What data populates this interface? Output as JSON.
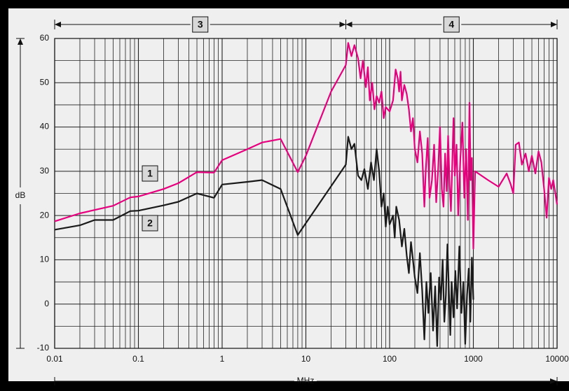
{
  "chart_data": {
    "type": "line",
    "title": "",
    "xlabel": "MHz",
    "ylabel": "dB",
    "xscale": "log",
    "xlim": [
      0.01,
      10000
    ],
    "ylim": [
      -10,
      60
    ],
    "grid": true,
    "x_tick_labels": [
      "0.01",
      "0.1",
      "1",
      "10",
      "100",
      "1000",
      "10000"
    ],
    "y_tick_labels": [
      "-10",
      "0",
      "10",
      "20",
      "30",
      "40",
      "50",
      "60"
    ],
    "y_ticks": [
      -10,
      0,
      10,
      20,
      30,
      40,
      50,
      60
    ],
    "x_ticks": [
      0.01,
      0.1,
      1,
      10,
      100,
      1000,
      10000
    ],
    "range_labels": [
      {
        "label": "3",
        "from": 0.01,
        "to": 30
      },
      {
        "label": "4",
        "from": 30,
        "to": 10000
      }
    ],
    "series": [
      {
        "name": "1",
        "color": "#e6007e",
        "points": [
          [
            0.01,
            18.7
          ],
          [
            0.02,
            20.5
          ],
          [
            0.05,
            22.2
          ],
          [
            0.08,
            24.1
          ],
          [
            0.1,
            24.3
          ],
          [
            0.2,
            26.0
          ],
          [
            0.3,
            27.3
          ],
          [
            0.5,
            29.8
          ],
          [
            0.8,
            29.7
          ],
          [
            1,
            32.5
          ],
          [
            2,
            35.0
          ],
          [
            3,
            36.5
          ],
          [
            5,
            37.3
          ],
          [
            8,
            29.8
          ],
          [
            10,
            33.5
          ],
          [
            20,
            48.0
          ],
          [
            30,
            54.0
          ],
          [
            32,
            59.0
          ],
          [
            35,
            56.0
          ],
          [
            38,
            58.5
          ],
          [
            42,
            55.5
          ],
          [
            45,
            51.0
          ],
          [
            48,
            55.0
          ],
          [
            52,
            49.0
          ],
          [
            55,
            53.5
          ],
          [
            58,
            46.0
          ],
          [
            62,
            50.0
          ],
          [
            66,
            44.0
          ],
          [
            70,
            47.0
          ],
          [
            75,
            45.5
          ],
          [
            80,
            48.0
          ],
          [
            85,
            42.0
          ],
          [
            90,
            44.5
          ],
          [
            100,
            43.5
          ],
          [
            110,
            46.0
          ],
          [
            118,
            53.0
          ],
          [
            125,
            51.0
          ],
          [
            130,
            48.0
          ],
          [
            135,
            52.5
          ],
          [
            140,
            46.0
          ],
          [
            150,
            49.5
          ],
          [
            160,
            47.5
          ],
          [
            170,
            44.0
          ],
          [
            180,
            39.0
          ],
          [
            190,
            42.0
          ],
          [
            200,
            35.0
          ],
          [
            215,
            32.0
          ],
          [
            230,
            39.0
          ],
          [
            245,
            34.0
          ],
          [
            260,
            22.0
          ],
          [
            270,
            30.0
          ],
          [
            285,
            37.5
          ],
          [
            300,
            24.0
          ],
          [
            320,
            28.0
          ],
          [
            340,
            36.0
          ],
          [
            360,
            23.0
          ],
          [
            380,
            30.5
          ],
          [
            400,
            40.0
          ],
          [
            420,
            26.0
          ],
          [
            440,
            22.0
          ],
          [
            460,
            34.0
          ],
          [
            480,
            25.5
          ],
          [
            500,
            38.0
          ],
          [
            520,
            27.0
          ],
          [
            540,
            21.0
          ],
          [
            560,
            31.5
          ],
          [
            580,
            42.0
          ],
          [
            600,
            29.0
          ],
          [
            630,
            36.0
          ],
          [
            660,
            20.0
          ],
          [
            700,
            33.0
          ],
          [
            740,
            41.0
          ],
          [
            780,
            24.0
          ],
          [
            820,
            35.0
          ],
          [
            860,
            19.0
          ],
          [
            900,
            45.5
          ],
          [
            930,
            28.0
          ],
          [
            960,
            33.0
          ],
          [
            1000,
            12.5
          ],
          [
            1050,
            30.0
          ],
          [
            1500,
            28.0
          ],
          [
            2000,
            26.5
          ],
          [
            2500,
            29.5
          ],
          [
            2800,
            27.0
          ],
          [
            3000,
            25.0
          ],
          [
            3200,
            36.0
          ],
          [
            3500,
            36.5
          ],
          [
            3800,
            31.5
          ],
          [
            4200,
            34.0
          ],
          [
            4600,
            30.0
          ],
          [
            5000,
            33.5
          ],
          [
            5500,
            29.5
          ],
          [
            6000,
            34.5
          ],
          [
            6500,
            32.0
          ],
          [
            7000,
            26.0
          ],
          [
            7500,
            19.5
          ],
          [
            8000,
            28.5
          ],
          [
            8500,
            26.0
          ],
          [
            9000,
            28.0
          ],
          [
            10000,
            22.5
          ]
        ]
      },
      {
        "name": "2",
        "color": "#1a1a1a",
        "points": [
          [
            0.01,
            16.8
          ],
          [
            0.02,
            17.8
          ],
          [
            0.03,
            19.0
          ],
          [
            0.05,
            19.0
          ],
          [
            0.08,
            21.0
          ],
          [
            0.1,
            21.1
          ],
          [
            0.2,
            22.3
          ],
          [
            0.3,
            23.1
          ],
          [
            0.5,
            25.0
          ],
          [
            0.8,
            24.0
          ],
          [
            1,
            27.0
          ],
          [
            2,
            27.6
          ],
          [
            3,
            28.0
          ],
          [
            5,
            26.0
          ],
          [
            8,
            15.6
          ],
          [
            30,
            31.5
          ],
          [
            32,
            37.8
          ],
          [
            35,
            35.0
          ],
          [
            38,
            36.2
          ],
          [
            42,
            29.0
          ],
          [
            46,
            28.0
          ],
          [
            50,
            30.5
          ],
          [
            55,
            26.0
          ],
          [
            60,
            32.0
          ],
          [
            65,
            28.0
          ],
          [
            70,
            35.0
          ],
          [
            75,
            30.0
          ],
          [
            80,
            22.0
          ],
          [
            85,
            25.0
          ],
          [
            90,
            17.5
          ],
          [
            95,
            22.0
          ],
          [
            100,
            18.0
          ],
          [
            110,
            20.0
          ],
          [
            115,
            15.0
          ],
          [
            120,
            22.0
          ],
          [
            130,
            19.0
          ],
          [
            140,
            13.0
          ],
          [
            150,
            17.0
          ],
          [
            160,
            11.0
          ],
          [
            170,
            7.0
          ],
          [
            180,
            14.0
          ],
          [
            190,
            10.0
          ],
          [
            200,
            6.0
          ],
          [
            215,
            2.5
          ],
          [
            230,
            11.5
          ],
          [
            245,
            3.0
          ],
          [
            260,
            -8.0
          ],
          [
            275,
            5.0
          ],
          [
            290,
            -2.0
          ],
          [
            310,
            7.0
          ],
          [
            330,
            -6.0
          ],
          [
            350,
            4.0
          ],
          [
            370,
            -9.5
          ],
          [
            390,
            6.0
          ],
          [
            410,
            1.0
          ],
          [
            430,
            10.0
          ],
          [
            450,
            -4.0
          ],
          [
            470,
            2.0
          ],
          [
            490,
            13.5
          ],
          [
            510,
            3.0
          ],
          [
            530,
            -7.0
          ],
          [
            550,
            5.0
          ],
          [
            580,
            -3.0
          ],
          [
            610,
            7.5
          ],
          [
            640,
            -1.0
          ],
          [
            680,
            13.0
          ],
          [
            720,
            -2.0
          ],
          [
            760,
            5.0
          ],
          [
            800,
            -9.0
          ],
          [
            840,
            2.0
          ],
          [
            880,
            8.0
          ],
          [
            920,
            -4.0
          ],
          [
            960,
            10.5
          ],
          [
            1000,
            1.0
          ]
        ]
      }
    ]
  }
}
